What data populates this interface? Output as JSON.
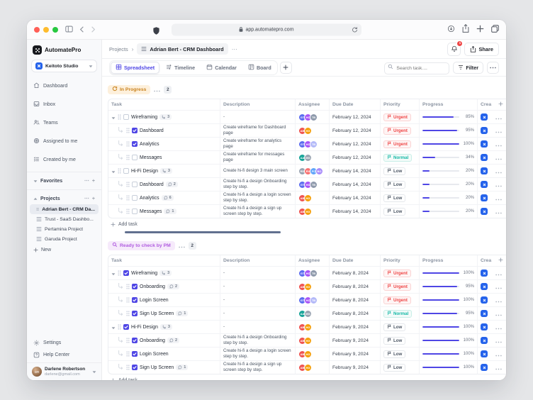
{
  "browser": {
    "url": "app.automatepro.com"
  },
  "app": {
    "name": "AutomatePro"
  },
  "colors": {
    "accent": "#4f46e5",
    "urgent": "#ef4444",
    "normal": "#14b8a6",
    "low": "#4b5563",
    "created_chip": "#2563eb"
  },
  "sidebar": {
    "workspace": {
      "name": "Keitoto Studio"
    },
    "nav": [
      {
        "icon": "home-icon",
        "label": "Dashboard"
      },
      {
        "icon": "inbox-icon",
        "label": "Inbox"
      },
      {
        "icon": "teams-icon",
        "label": "Teams"
      },
      {
        "icon": "target-icon",
        "label": "Assigned to me"
      },
      {
        "icon": "list-check-icon",
        "label": "Created by me"
      }
    ],
    "sections": {
      "favorites": "Favorites",
      "projects": "Projects"
    },
    "projects": [
      {
        "label": "Adrian Bert - CRM Da...",
        "selected": true
      },
      {
        "label": "Trust - SaaS Dashbo...",
        "selected": false
      },
      {
        "label": "Pertamina Project",
        "selected": false
      },
      {
        "label": "Garuda Project",
        "selected": false
      }
    ],
    "new_label": "New",
    "settings_label": "Settings",
    "help_label": "Help Center",
    "user": {
      "name": "Darlene Robertson",
      "email": "darlene@gmail.com",
      "initials": "DR"
    }
  },
  "header": {
    "breadcrumb_root": "Projects",
    "title": "Adrian Bert - CRM Dashboard",
    "notification_count": "1",
    "share_label": "Share"
  },
  "toolbar": {
    "tabs": [
      {
        "icon": "spreadsheet-icon",
        "label": "Spreadsheet",
        "active": true
      },
      {
        "icon": "timeline-icon",
        "label": "Timeline",
        "active": false
      },
      {
        "icon": "calendar-icon",
        "label": "Calendar",
        "active": false
      },
      {
        "icon": "board-icon",
        "label": "Board",
        "active": false
      }
    ],
    "search_placeholder": "Search task....",
    "filter_label": "Filter"
  },
  "table": {
    "columns": [
      "Task",
      "Description",
      "Assignee",
      "Due Date",
      "Priority",
      "Progress",
      "Crea"
    ],
    "add_task_label": "Add task"
  },
  "groups": [
    {
      "label": "In Progress",
      "icon": "progress-icon",
      "count": "2",
      "badge_bg": "#fdf0dc",
      "badge_text": "#c9821e",
      "rows": [
        {
          "task": "Wireframing",
          "type": "parent",
          "checked": false,
          "sub": "3",
          "desc": "-",
          "assignees": [
            [
              "GT",
              "#5b6cf0"
            ],
            [
              "HC",
              "#a855f7"
            ],
            [
              "TB",
              "#8e99ab"
            ]
          ],
          "due": "February 12, 2024",
          "priority": "Urgent",
          "progress": 85
        },
        {
          "task": "Dashboard",
          "type": "child",
          "checked": true,
          "desc": "Create wireframe for Dashboard page",
          "assignees": [
            [
              "AB",
              "#ef5350"
            ],
            [
              "HG",
              "#f59f0a"
            ]
          ],
          "due": "February 12, 2024",
          "priority": "Urgent",
          "progress": 95
        },
        {
          "task": "Analytics",
          "type": "child",
          "checked": true,
          "desc": "Create wireframe for analytics page",
          "assignees": [
            [
              "GT",
              "#5b6cf0"
            ],
            [
              "HC",
              "#a855f7"
            ],
            [
              "TB",
              "#b3b9f8"
            ]
          ],
          "due": "February 12, 2024",
          "priority": "Urgent",
          "progress": 100
        },
        {
          "task": "Messages",
          "type": "child",
          "checked": false,
          "desc": "Create wireframe for messages page",
          "assignees": [
            [
              "AA",
              "#17a398"
            ],
            [
              "MG",
              "#9aa4b2"
            ]
          ],
          "due": "February 12, 2024",
          "priority": "Normal",
          "progress": 34
        },
        {
          "task": "Hi-Fi Design",
          "type": "parent",
          "checked": false,
          "sub": "3",
          "desc": "Create hi-fi design 3 main screen",
          "assignees": [
            [
              "RD",
              "#9aa4b2"
            ],
            [
              "RV",
              "#f87171"
            ],
            [
              "FC",
              "#60a5fa"
            ],
            [
              "BO",
              "#a78bfa"
            ]
          ],
          "due": "February 14, 2024",
          "priority": "Low",
          "progress": 20
        },
        {
          "task": "Dashboard",
          "type": "child",
          "checked": false,
          "comments": "2",
          "desc": "Create hi-fi a design Onboarding step by step.",
          "assignees": [
            [
              "GT",
              "#5b6cf0"
            ],
            [
              "HC",
              "#a855f7"
            ],
            [
              "TB",
              "#8e99ab"
            ]
          ],
          "due": "February 14, 2024",
          "priority": "Low",
          "progress": 20
        },
        {
          "task": "Analytics",
          "type": "child",
          "checked": false,
          "comments": "6",
          "desc": "Create hi-fi a design a login screen step by step.",
          "assignees": [
            [
              "AB",
              "#ef5350"
            ],
            [
              "HG",
              "#f59f0a"
            ]
          ],
          "due": "February 14, 2024",
          "priority": "Low",
          "progress": 20
        },
        {
          "task": "Messages",
          "type": "child",
          "checked": false,
          "comments": "1",
          "desc": "Create hi-fi a design a sign up screen step by step.",
          "assignees": [
            [
              "AB",
              "#ef5350"
            ],
            [
              "HG",
              "#f59f0a"
            ]
          ],
          "due": "February 14, 2024",
          "priority": "Low",
          "progress": 20
        }
      ]
    },
    {
      "label": "Ready to check by PM",
      "icon": "magnifier-icon",
      "count": "2",
      "badge_bg": "#f6eafb",
      "badge_text": "#b05ce0",
      "rows": [
        {
          "task": "Wireframing",
          "type": "parent",
          "checked": true,
          "sub": "3",
          "desc": "-",
          "assignees": [
            [
              "GT",
              "#5b6cf0"
            ],
            [
              "HC",
              "#a855f7"
            ],
            [
              "TB",
              "#8e99ab"
            ]
          ],
          "due": "February 8, 2024",
          "priority": "Urgent",
          "progress": 100
        },
        {
          "task": "Onboarding",
          "type": "child",
          "checked": true,
          "comments": "2",
          "desc": "-",
          "assignees": [
            [
              "AB",
              "#ef5350"
            ],
            [
              "HG",
              "#f59f0a"
            ]
          ],
          "due": "February 8, 2024",
          "priority": "Urgent",
          "progress": 95
        },
        {
          "task": "Login Screen",
          "type": "child",
          "checked": true,
          "desc": "-",
          "assignees": [
            [
              "GT",
              "#5b6cf0"
            ],
            [
              "HC",
              "#a855f7"
            ],
            [
              "TB",
              "#b3b9f8"
            ]
          ],
          "due": "February 8, 2024",
          "priority": "Urgent",
          "progress": 100
        },
        {
          "task": "Sign Up Screen",
          "type": "child",
          "checked": true,
          "comments": "1",
          "desc": "-",
          "assignees": [
            [
              "AA",
              "#17a398"
            ],
            [
              "MG",
              "#9aa4b2"
            ]
          ],
          "due": "February 8, 2024",
          "priority": "Normal",
          "progress": 95
        },
        {
          "task": "Hi-Fi Design",
          "type": "parent",
          "checked": true,
          "sub": "3",
          "desc": "-",
          "assignees": [
            [
              "AB",
              "#ef5350"
            ],
            [
              "HG",
              "#f59f0a"
            ]
          ],
          "due": "February 9, 2024",
          "priority": "Low",
          "progress": 100
        },
        {
          "task": "Onboarding",
          "type": "child",
          "checked": true,
          "comments": "2",
          "desc": "Create hi-fi a design Onboarding step by step.",
          "assignees": [
            [
              "AB",
              "#ef5350"
            ],
            [
              "HG",
              "#f59f0a"
            ]
          ],
          "due": "February 9, 2024",
          "priority": "Low",
          "progress": 100
        },
        {
          "task": "Login Screen",
          "type": "child",
          "checked": true,
          "desc": "Create hi-fi a design a login screen step by step.",
          "assignees": [
            [
              "AB",
              "#ef5350"
            ],
            [
              "HG",
              "#f59f0a"
            ]
          ],
          "due": "February 9, 2024",
          "priority": "Low",
          "progress": 100
        },
        {
          "task": "Sign Up Screen",
          "type": "child",
          "checked": true,
          "comments": "1",
          "desc": "Create hi-fi a design a sign up screen step by step.",
          "assignees": [
            [
              "AB",
              "#ef5350"
            ],
            [
              "HG",
              "#f59f0a"
            ]
          ],
          "due": "February 9, 2024",
          "priority": "Low",
          "progress": 100
        }
      ]
    }
  ]
}
